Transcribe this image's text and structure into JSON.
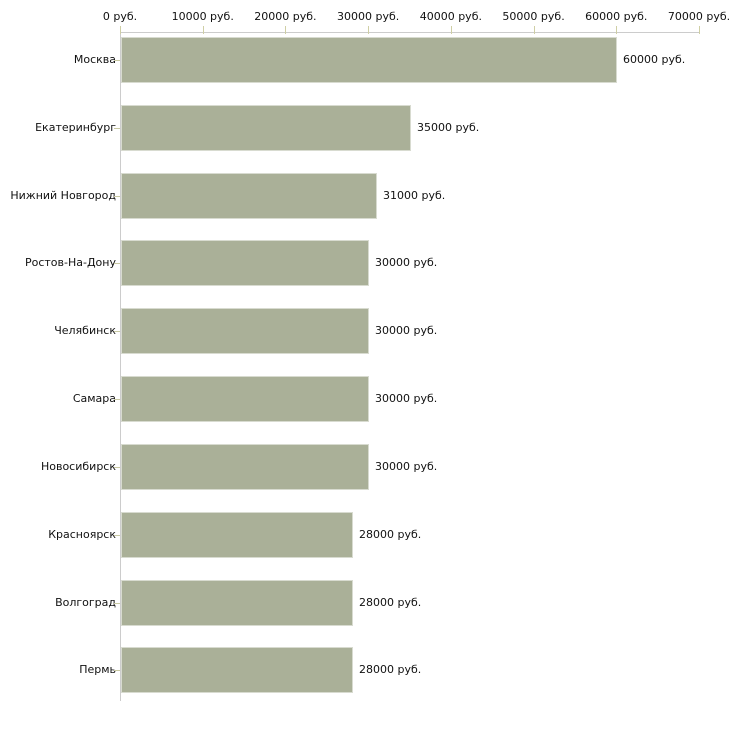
{
  "chart_data": {
    "type": "bar",
    "orientation": "horizontal",
    "title": "",
    "xlabel": "",
    "ylabel": "",
    "unit": "руб.",
    "categories": [
      "Москва",
      "Екатеринбург",
      "Нижний Новгород",
      "Ростов-На-Дону",
      "Челябинск",
      "Самара",
      "Новосибирск",
      "Красноярск",
      "Волгоград",
      "Пермь"
    ],
    "values": [
      60000,
      35000,
      31000,
      30000,
      30000,
      30000,
      30000,
      28000,
      28000,
      28000
    ],
    "value_labels": [
      "60000 руб.",
      "35000 руб.",
      "31000 руб.",
      "30000 руб.",
      "30000 руб.",
      "30000 руб.",
      "30000 руб.",
      "28000 руб.",
      "28000 руб.",
      "28000 руб."
    ],
    "xlim": [
      0,
      70000
    ],
    "x_ticks": [
      0,
      10000,
      20000,
      30000,
      40000,
      50000,
      60000,
      70000
    ],
    "x_tick_labels": [
      "0 руб.",
      "10000 руб.",
      "20000 руб.",
      "30000 руб.",
      "40000 руб.",
      "50000 руб.",
      "60000 руб.",
      "70000 руб."
    ],
    "grid": false,
    "legend": null,
    "colors": {
      "bar_fill": "#aab098",
      "bar_border": "#d8dbd0",
      "axis_line": "#cccccc",
      "tick_mark": "#cfcfa5",
      "text": "#111111",
      "background": "#ffffff"
    }
  }
}
